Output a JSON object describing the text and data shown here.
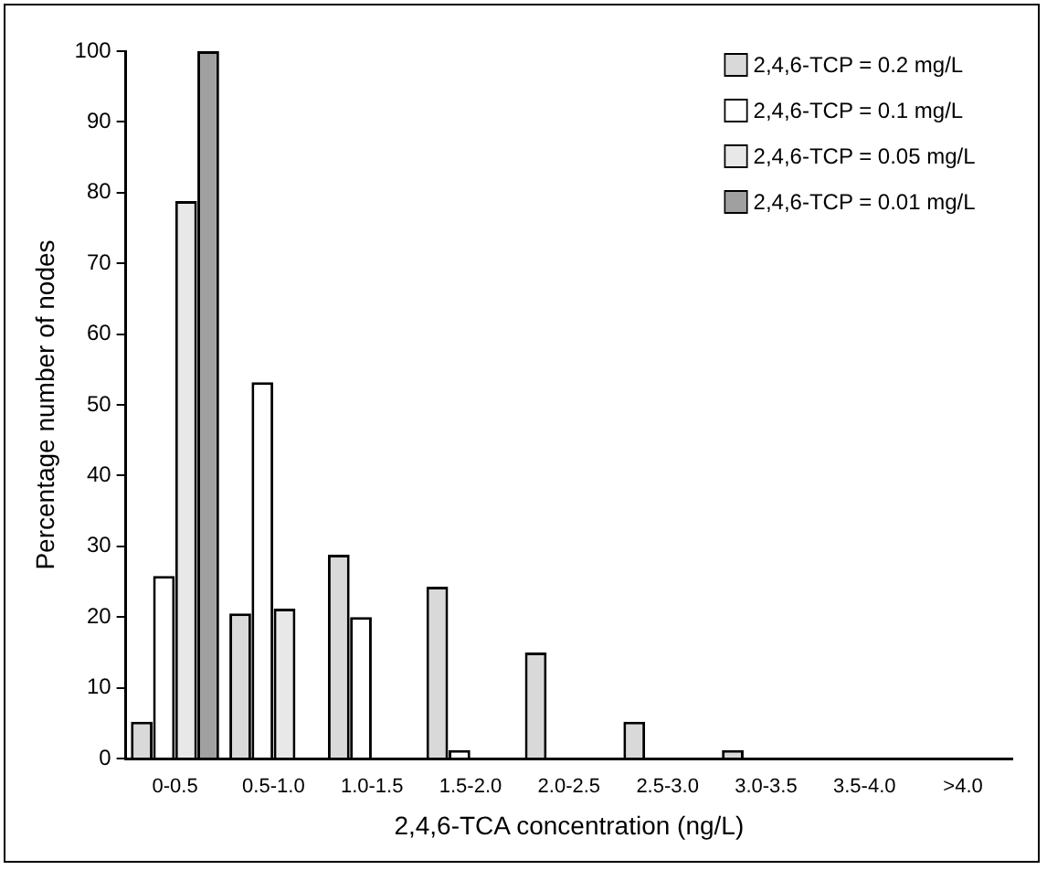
{
  "chart_data": {
    "type": "bar",
    "xlabel": "2,4,6-TCA concentration (ng/L)",
    "ylabel": "Percentage number of nodes",
    "categories": [
      "0-0.5",
      "0.5-1.0",
      "1.0-1.5",
      "1.5-2.0",
      "2.0-2.5",
      "2.5-3.0",
      "3.0-3.5",
      "3.5-4.0",
      ">4.0"
    ],
    "series": [
      {
        "name": "2,4,6-TCP = 0.2 mg/L",
        "color": "#d9d9d9",
        "values": [
          5.2,
          20.5,
          28.8,
          24.3,
          15,
          5.2,
          1.2,
          0,
          0
        ]
      },
      {
        "name": "2,4,6-TCP = 0.1 mg/L",
        "color": "#ffffff",
        "values": [
          25.8,
          53.2,
          20,
          1.2,
          0,
          0,
          0,
          0,
          0
        ]
      },
      {
        "name": "2,4,6-TCP = 0.05 mg/L",
        "color": "#e8e8e8",
        "values": [
          78.8,
          21.2,
          0,
          0,
          0,
          0,
          0,
          0,
          0
        ]
      },
      {
        "name": "2,4,6-TCP = 0.01 mg/L",
        "color": "#a0a0a0",
        "values": [
          100,
          0,
          0,
          0,
          0,
          0,
          0,
          0,
          0
        ]
      }
    ],
    "ylim": [
      0,
      100
    ],
    "yticks": [
      0,
      10,
      20,
      30,
      40,
      50,
      60,
      70,
      80,
      90,
      100
    ],
    "grid": false,
    "legend": "top right"
  }
}
